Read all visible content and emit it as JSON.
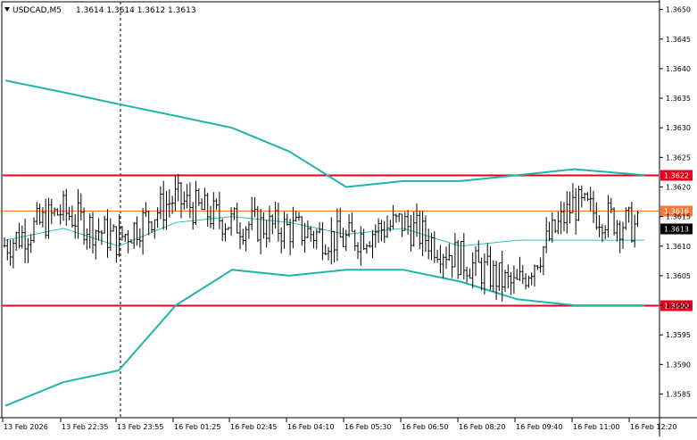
{
  "header": {
    "symbol": "USDCAD,M5",
    "ohlc": "1.3614 1.3614 1.3612 1.3613"
  },
  "y_axis": {
    "min": 1.3581,
    "max": 1.3651,
    "tick_values": [
      1.365,
      1.3645,
      1.364,
      1.3635,
      1.363,
      1.3625,
      1.362,
      1.3615,
      1.361,
      1.3605,
      1.36,
      1.3595,
      1.359,
      1.3585
    ],
    "tick_labels": [
      "1.3650",
      "1.3645",
      "1.3640",
      "1.3635",
      "1.3630",
      "1.3625",
      "1.3620",
      "1.3615",
      "1.3610",
      "1.3605",
      "1.3600",
      "1.3595",
      "1.3590",
      "1.3585"
    ]
  },
  "x_axis": {
    "labels": [
      "13 Feb 2026",
      "13 Feb 22:35",
      "13 Feb 23:55",
      "16 Feb 01:25",
      "16 Feb 02:45",
      "16 Feb 04:10",
      "16 Feb 05:30",
      "16 Feb 06:50",
      "16 Feb 08:20",
      "16 Feb 09:40",
      "16 Feb 11:00",
      "16 Feb 12:20"
    ]
  },
  "levels": [
    {
      "value": 1.3622,
      "label": "1.3622",
      "color": "#e8001c",
      "thick": true
    },
    {
      "value": 1.3616,
      "label": "1.3616",
      "color": "#f07a3c",
      "thick": false
    },
    {
      "value": 1.36,
      "label": "1.3600",
      "color": "#e8001c",
      "thick": true
    }
  ],
  "current_price": {
    "value": 1.3613,
    "label": "1.3613"
  },
  "colors": {
    "candle": "#000000",
    "band": "#1fb5a8",
    "middle": "#2fc3b6",
    "level_red": "#e8001c",
    "level_orange": "#f07a3c",
    "grid": "#c8c8c8"
  },
  "chart_data": {
    "type": "line",
    "instrument": "USDCAD",
    "timeframe": "M5",
    "x": [
      "13 Feb 2026",
      "13 Feb 22:35",
      "13 Feb 23:55",
      "16 Feb 01:25",
      "16 Feb 02:45",
      "16 Feb 04:10",
      "16 Feb 05:30",
      "16 Feb 06:50",
      "16 Feb 08:20",
      "16 Feb 09:40",
      "16 Feb 11:00",
      "16 Feb 12:20"
    ],
    "series": [
      {
        "name": "",
        "values": [
          1.3638,
          1.3636,
          1.3634,
          1.3632,
          1.363,
          1.3626,
          1.362,
          1.3621,
          1.3621,
          1.3622,
          1.3623,
          1.3622
        ]
      },
      {
        "name": "",
        "values": [
          1.3611,
          1.3613,
          1.361,
          1.3614,
          1.3615,
          1.3614,
          1.3612,
          1.3613,
          1.361,
          1.3611,
          1.3611,
          1.3611
        ]
      },
      {
        "name": "",
        "values": [
          1.3583,
          1.3587,
          1.3589,
          1.36,
          1.3606,
          1.3605,
          1.3606,
          1.3606,
          1.3604,
          1.3601,
          1.36,
          1.36
        ]
      },
      {
        "name": "",
        "values": [
          1.361,
          1.3616,
          1.3611,
          1.3618,
          1.3614,
          1.3613,
          1.3611,
          1.3614,
          1.3608,
          1.3603,
          1.3617,
          1.3613
        ]
      }
    ],
    "ylim": [
      1.3581,
      1.3651
    ],
    "grid": false
  }
}
